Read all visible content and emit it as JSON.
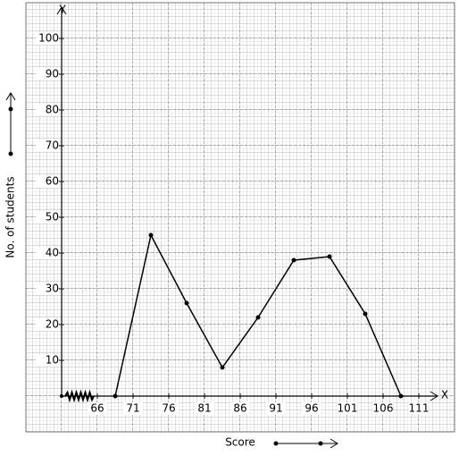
{
  "chart_data": {
    "type": "line",
    "x_label": "Score",
    "y_label": "No. of students",
    "x_axis_name": "X",
    "y_axis_name": "Y",
    "series": [
      {
        "name": null,
        "color": "#000000",
        "x": [
          68.5,
          73.5,
          78.5,
          83.5,
          88.5,
          93.5,
          98.5,
          103.5,
          108.5
        ],
        "values": [
          0,
          45,
          26,
          8,
          22,
          38,
          39,
          23,
          0
        ]
      }
    ],
    "xlim": [
      61,
      114
    ],
    "ylim": [
      0,
      105
    ],
    "xticks": [
      66,
      71,
      76,
      81,
      86,
      91,
      96,
      101,
      106,
      111
    ],
    "yticks": [
      10,
      20,
      30,
      40,
      50,
      60,
      70,
      80,
      90,
      100
    ]
  }
}
